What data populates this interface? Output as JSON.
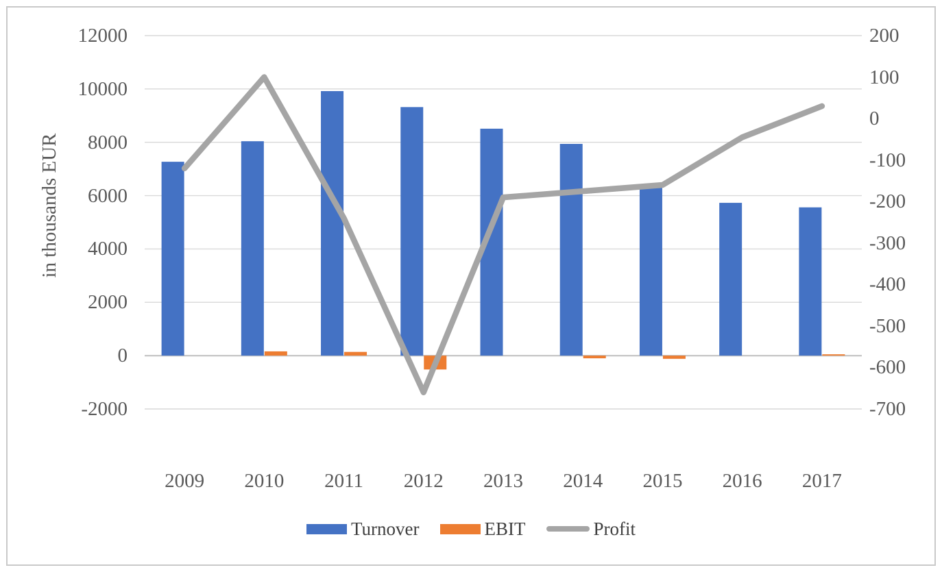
{
  "chart_data": {
    "type": "combo-bar-line",
    "title": "",
    "categories": [
      "2009",
      "2010",
      "2011",
      "2012",
      "2013",
      "2014",
      "2015",
      "2016",
      "2017"
    ],
    "series": [
      {
        "name": "Turnover",
        "type": "bar",
        "axis": "left",
        "color": "#4472C4",
        "values": [
          7270,
          8040,
          9920,
          9320,
          8510,
          7940,
          6350,
          5730,
          5560
        ]
      },
      {
        "name": "EBIT",
        "type": "bar",
        "axis": "left",
        "color": "#ED7D31",
        "values": [
          0,
          160,
          140,
          -520,
          0,
          -100,
          -120,
          0,
          50
        ]
      },
      {
        "name": "Profit",
        "type": "line",
        "axis": "right",
        "color": "#A5A5A5",
        "values": [
          -120,
          100,
          -240,
          -660,
          -190,
          -175,
          -160,
          -45,
          30
        ]
      }
    ],
    "left_axis": {
      "title": "in thousands EUR",
      "min": -2000,
      "max": 12000,
      "step": 2000,
      "ticks": [
        "12000",
        "10000",
        "8000",
        "6000",
        "4000",
        "2000",
        "0",
        "-2000"
      ]
    },
    "right_axis": {
      "min": -700,
      "max": 200,
      "step": 100,
      "ticks": [
        "200",
        "100",
        "0",
        "-100",
        "-200",
        "-300",
        "-400",
        "-500",
        "-600",
        "-700"
      ]
    },
    "grid": true,
    "legend_position": "bottom",
    "colors": {
      "gridline": "#D9D9D9",
      "zero_line": "#C9C9C9",
      "tick_text": "#595959",
      "legend_text": "#3F3F3F",
      "frame_border": "#C9C9C9",
      "background": "#FFFFFF"
    }
  }
}
